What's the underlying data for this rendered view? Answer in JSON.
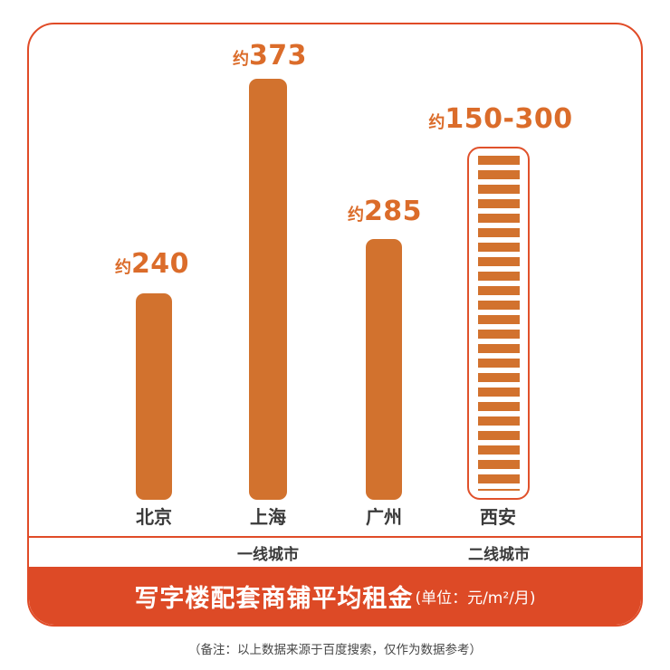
{
  "colors": {
    "bar_fill": "#D2722E",
    "frame_border": "#E04B27",
    "band_background": "#DD4A26",
    "value_text": "#DB6C2A",
    "category_text": "#3A3A3A",
    "note_text": "#474747",
    "band_text": "#FFFFFF"
  },
  "chart_data": {
    "type": "bar",
    "title": "写字楼配套商铺平均租金",
    "unit_label": "(单位：元/m²/月)",
    "note": "（备注：以上数据来源于百度搜索，仅作为数据参考）",
    "categories": [
      "北京",
      "上海",
      "广州",
      "西安"
    ],
    "bars": [
      {
        "city": "北京",
        "approx_prefix": "约",
        "value_text": "240",
        "value": 240,
        "tier": "一线城市",
        "style": "solid"
      },
      {
        "city": "上海",
        "approx_prefix": "约",
        "value_text": "373",
        "value": 373,
        "tier": "一线城市",
        "style": "solid"
      },
      {
        "city": "广州",
        "approx_prefix": "约",
        "value_text": "285",
        "value": 285,
        "tier": "一线城市",
        "style": "solid"
      },
      {
        "city": "西安",
        "approx_prefix": "约",
        "value_text": "150-300",
        "value_min": 150,
        "value_max": 300,
        "tier": "二线城市",
        "style": "striped-outline"
      }
    ],
    "groups": [
      {
        "label": "一线城市",
        "cities": [
          "北京",
          "上海",
          "广州"
        ]
      },
      {
        "label": "二线城市",
        "cities": [
          "西安"
        ]
      }
    ],
    "layout_hints": {
      "grid": false,
      "legend": false,
      "value_axis_shown": false,
      "bars_not_to_scale": true,
      "striped_bar_meaning": "range value (150-300) drawn as outlined bar with horizontal stripes"
    }
  }
}
